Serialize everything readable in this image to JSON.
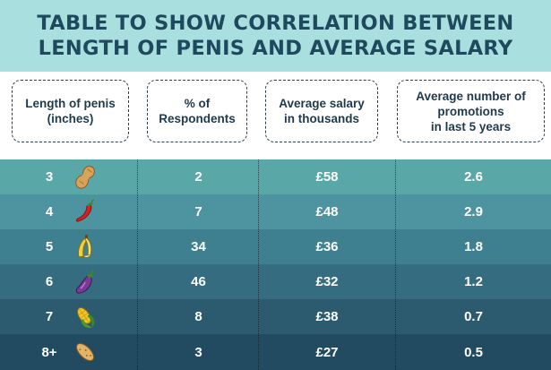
{
  "title": {
    "line1": "TABLE TO SHOW CORRELATION BETWEEN",
    "line2": "LENGTH OF PENIS AND AVERAGE SALARY"
  },
  "headers": [
    "Length of penis\n(inches)",
    "% of\nRespondents",
    "Average salary\nin thousands",
    "Average number of\npromotions\nin last 5 years"
  ],
  "rows": [
    {
      "length": "3",
      "icon": "peanut-icon",
      "respondents": "2",
      "salary": "£58",
      "promotions": "2.6"
    },
    {
      "length": "4",
      "icon": "chili-icon",
      "respondents": "7",
      "salary": "£48",
      "promotions": "2.9"
    },
    {
      "length": "5",
      "icon": "banana-icon",
      "respondents": "34",
      "salary": "£36",
      "promotions": "1.8"
    },
    {
      "length": "6",
      "icon": "eggplant-icon",
      "respondents": "46",
      "salary": "£32",
      "promotions": "1.2"
    },
    {
      "length": "7",
      "icon": "corn-icon",
      "respondents": "8",
      "salary": "£38",
      "promotions": "0.7"
    },
    {
      "length": "8+",
      "icon": "potato-icon",
      "respondents": "3",
      "salary": "£27",
      "promotions": "0.5"
    }
  ],
  "colors": {
    "title_bg": "#a9e0df",
    "title_text": "#1f4a5e",
    "row_backgrounds": [
      "#5aa7a7",
      "#4d93a0",
      "#3f8090",
      "#366c80",
      "#2c5a6f",
      "#224a60"
    ]
  }
}
